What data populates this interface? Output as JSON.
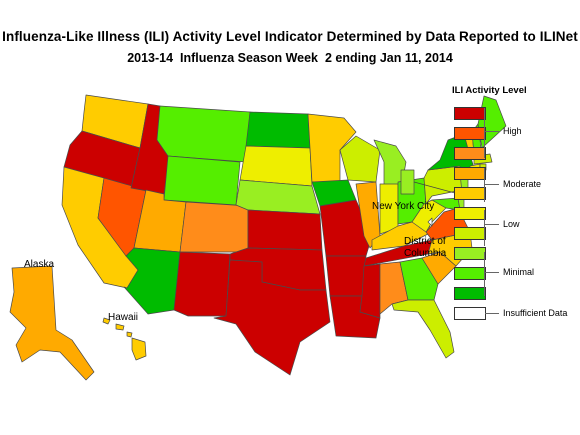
{
  "header": {
    "title": "Influenza-Like Illness (ILI) Activity Level Indicator Determined by Data Reported to ILINet",
    "subtitle": "2013-14  Influenza Season Week  2 ending Jan 11, 2014"
  },
  "map_labels": {
    "alaska": "Alaska",
    "hawaii": "Hawaii",
    "new_york_city": "New York City",
    "dc_line1": "District of",
    "dc_line2": "Columbia"
  },
  "legend": {
    "title": "ILI Activity Level",
    "levels": [
      {
        "level": 10,
        "color": "#cc0000"
      },
      {
        "level": 9,
        "color": "#ff5500"
      },
      {
        "level": 8,
        "color": "#ff8c1a"
      },
      {
        "level": 7,
        "color": "#ffaa00"
      },
      {
        "level": 6,
        "color": "#ffcc00"
      },
      {
        "level": 5,
        "color": "#eeee00"
      },
      {
        "level": 4,
        "color": "#ccee00"
      },
      {
        "level": 3,
        "color": "#99ee22"
      },
      {
        "level": 2,
        "color": "#55ee00"
      },
      {
        "level": 1,
        "color": "#00bb00"
      },
      {
        "level": 0,
        "color": "#ffffff"
      }
    ],
    "group_labels": {
      "high": "High",
      "moderate": "Moderate",
      "low": "Low",
      "minimal": "Minimal",
      "insufficient": "Insufficient Data"
    }
  },
  "states": {
    "WA": 6,
    "OR": 10,
    "CA": 6,
    "NV": 9,
    "ID": 10,
    "MT": 2,
    "WY": 2,
    "UT": 7,
    "AZ": 1,
    "CO": 8,
    "NM": 10,
    "ND": 1,
    "SD": 5,
    "NE": 3,
    "KS": 10,
    "OK": 10,
    "TX": 10,
    "MN": 6,
    "IA": 1,
    "MO": 10,
    "AR": 10,
    "LA": 10,
    "WI": 4,
    "IL": 7,
    "MI": 3,
    "IN": 5,
    "OH": 2,
    "KY": 6,
    "TN": 10,
    "MS": 10,
    "AL": 8,
    "GA": 2,
    "FL": 4,
    "SC": 7,
    "NC": 6,
    "VA": 9,
    "WV": 5,
    "PA": 4,
    "NY": 1,
    "VT": 6,
    "NH": 2,
    "ME": 2,
    "MA": 4,
    "CT": 5,
    "RI": 4,
    "NJ": 3,
    "DE": 3,
    "MD": 2,
    "AK": 7,
    "HI": 6,
    "NYC": 3,
    "DC": 0
  }
}
